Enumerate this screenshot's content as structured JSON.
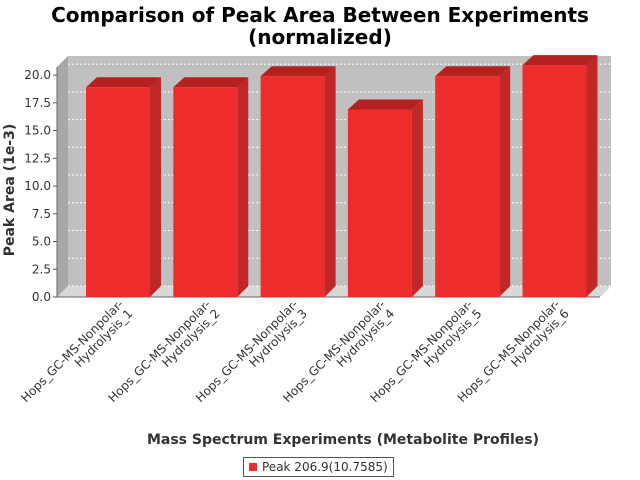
{
  "chart_data": {
    "type": "bar",
    "title_line1": "Comparison of Peak Area Between Experiments",
    "title_line2": "(normalized)",
    "xlabel": "Mass Spectrum Experiments (Metabolite Profiles)",
    "ylabel": "Peak Area (1e-3)",
    "categories": [
      [
        "Hops_GC-MS-Nonpolar-",
        "Hydrolysis_1"
      ],
      [
        "Hops_GC-MS-Nonpolar-",
        "Hydrolysis_2"
      ],
      [
        "Hops_GC-MS-Nonpolar-",
        "Hydrolysis_3"
      ],
      [
        "Hops_GC-MS-Nonpolar-",
        "Hydrolysis_4"
      ],
      [
        "Hops_GC-MS-Nonpolar-",
        "Hydrolysis_5"
      ],
      [
        "Hops_GC-MS-Nonpolar-",
        "Hydrolysis_6"
      ]
    ],
    "series": [
      {
        "name": "Peak 206.9(10.7585)",
        "values": [
          18.9,
          18.9,
          19.9,
          16.9,
          19.9,
          20.9
        ]
      }
    ],
    "ylim": [
      0,
      21
    ],
    "yticks": [
      "0.0",
      "2.5",
      "5.0",
      "7.5",
      "10.0",
      "12.5",
      "15.0",
      "17.5",
      "20.0"
    ],
    "grid": true,
    "legend_position": "bottom",
    "colors": {
      "bar": "#ee2c2c",
      "bar_top": "#b32121",
      "bar_side": "#c02828",
      "plot_bg": "#c0c0c0",
      "plot_wall": "#a8a8a8"
    }
  }
}
